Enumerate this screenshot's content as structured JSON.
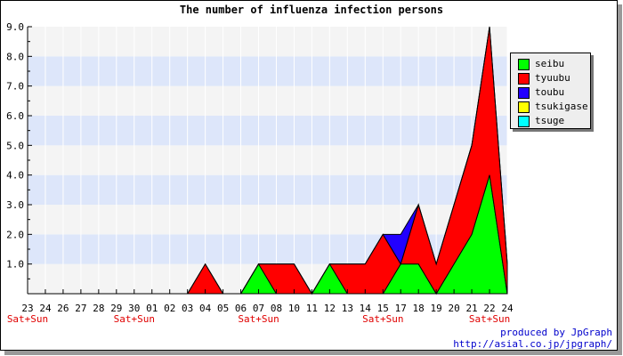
{
  "chart_data": {
    "type": "area",
    "title": "The number of influenza infection persons",
    "xlabel": "",
    "ylabel": "",
    "x": [
      "23",
      "24",
      "26",
      "27",
      "28",
      "29",
      "30",
      "01",
      "02",
      "03",
      "04",
      "05",
      "06",
      "07",
      "08",
      "10",
      "11",
      "12",
      "13",
      "14",
      "15",
      "17",
      "18",
      "19",
      "20",
      "21",
      "22",
      "24"
    ],
    "weekend_labels": [
      {
        "index": 0,
        "text": "Sat+Sun"
      },
      {
        "index": 6,
        "text": "Sat+Sun"
      },
      {
        "index": 13,
        "text": "Sat+Sun"
      },
      {
        "index": 20,
        "text": "Sat+Sun"
      },
      {
        "index": 26,
        "text": "Sat+Sun"
      }
    ],
    "ylim": [
      0,
      9
    ],
    "yticks": [
      "1.0",
      "2.0",
      "3.0",
      "4.0",
      "5.0",
      "6.0",
      "7.0",
      "8.0",
      "9.0"
    ],
    "stacked": true,
    "series": [
      {
        "name": "seibu",
        "color": "#00ff00",
        "values": [
          0,
          0,
          0,
          0,
          0,
          0,
          0,
          0,
          0,
          0,
          0,
          0,
          0,
          1,
          0,
          0,
          0,
          1,
          0,
          0,
          0,
          1,
          1,
          0,
          1,
          2,
          4,
          0
        ]
      },
      {
        "name": "tyuubu",
        "color": "#ff0000",
        "values": [
          0,
          0,
          0,
          0,
          0,
          0,
          0,
          0,
          0,
          0,
          1,
          0,
          0,
          0,
          1,
          1,
          0,
          0,
          1,
          1,
          2,
          0,
          2,
          1,
          2,
          3,
          5,
          1
        ]
      },
      {
        "name": "toubu",
        "color": "#2200ff",
        "values": [
          0,
          0,
          0,
          0,
          0,
          0,
          0,
          0,
          0,
          0,
          0,
          0,
          0,
          0,
          0,
          0,
          0,
          0,
          0,
          0,
          0,
          1,
          0,
          0,
          0,
          0,
          0,
          0
        ]
      },
      {
        "name": "tsukigase",
        "color": "#ffff00",
        "values": [
          0,
          0,
          0,
          0,
          0,
          0,
          0,
          0,
          0,
          0,
          0,
          0,
          0,
          0,
          0,
          0,
          0,
          0,
          0,
          0,
          0,
          0,
          0,
          0,
          0,
          0,
          0,
          0
        ]
      },
      {
        "name": "tsuge",
        "color": "#00ffff",
        "values": [
          0,
          0,
          0,
          0,
          0,
          0,
          0,
          0,
          0,
          0,
          0,
          0,
          0,
          0,
          0,
          0,
          0,
          0,
          0,
          0,
          0,
          0,
          0,
          0,
          0,
          0,
          0,
          0
        ]
      }
    ],
    "grid": true,
    "legend_position": "top-right"
  },
  "credits": {
    "line1": "produced by JpGraph",
    "line2": "http://asial.co.jp/jpgraph/"
  }
}
